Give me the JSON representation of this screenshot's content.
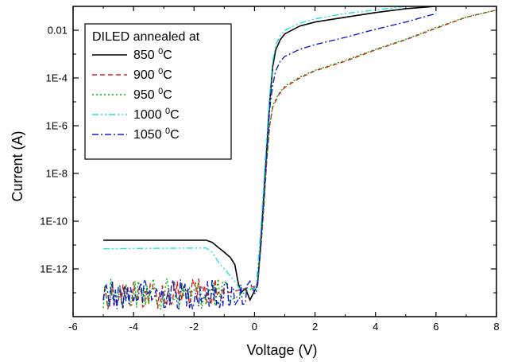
{
  "chart_data": {
    "type": "line",
    "xlabel": "Voltage (V)",
    "ylabel": "Current (A)",
    "xlim": [
      -6,
      8
    ],
    "ylim": [
      1e-14,
      0.1
    ],
    "yscale": "log",
    "x_ticks": [
      -6,
      -4,
      -2,
      0,
      2,
      4,
      6,
      8
    ],
    "x_tick_labels": [
      "-6",
      "-4",
      "-2",
      "0",
      "2",
      "4",
      "6",
      "8"
    ],
    "y_ticks": [
      1e-12,
      1e-10,
      1e-08,
      1e-06,
      0.0001,
      0.01
    ],
    "y_tick_labels": [
      "1E-12",
      "1E-10",
      "1E-8",
      "1E-6",
      "1E-4",
      "0.01"
    ],
    "legend": {
      "title": "DILED annealed at",
      "placement": "top-left",
      "unit_super": "0",
      "unit_tail": "C"
    },
    "series": [
      {
        "name": "850",
        "color": "#000000",
        "dash": "solid",
        "points": [
          [
            -5,
            1.6e-11
          ],
          [
            -1.6,
            1.6e-11
          ],
          [
            -1.4,
            1.3e-11
          ],
          [
            -1.2,
            8e-12
          ],
          [
            -1.0,
            5e-12
          ],
          [
            -0.8,
            3e-12
          ],
          [
            -0.65,
            1.5e-12
          ],
          [
            -0.55,
            3e-13
          ],
          [
            -0.45,
            1e-13
          ],
          [
            -0.3,
            1.5e-13
          ],
          [
            -0.15,
            5e-14
          ],
          [
            0,
            1.2e-13
          ],
          [
            0.1,
            2e-13
          ],
          [
            0.2,
            1e-11
          ],
          [
            0.3,
            1e-09
          ],
          [
            0.4,
            1e-07
          ],
          [
            0.5,
            1e-05
          ],
          [
            0.6,
            0.0003
          ],
          [
            0.7,
            0.0015
          ],
          [
            0.85,
            0.004
          ],
          [
            1.0,
            0.007
          ],
          [
            1.5,
            0.015
          ],
          [
            2,
            0.022
          ],
          [
            3,
            0.035
          ],
          [
            4,
            0.055
          ],
          [
            5,
            0.08
          ],
          [
            6,
            0.1
          ]
        ]
      },
      {
        "name": "900",
        "color": "#d62020",
        "dash": "dashed",
        "points": [
          [
            0.1,
            2e-13
          ],
          [
            0.2,
            5e-12
          ],
          [
            0.3,
            3e-10
          ],
          [
            0.4,
            3e-08
          ],
          [
            0.5,
            1e-06
          ],
          [
            0.6,
            6e-06
          ],
          [
            0.8,
            2e-05
          ],
          [
            1.0,
            4e-05
          ],
          [
            1.5,
            0.0001
          ],
          [
            2,
            0.0002
          ],
          [
            3,
            0.0005
          ],
          [
            4,
            0.0015
          ],
          [
            5,
            0.004
          ],
          [
            6,
            0.012
          ],
          [
            7,
            0.035
          ],
          [
            8,
            0.07
          ]
        ]
      },
      {
        "name": "950",
        "color": "#00b000",
        "dash": "dotted",
        "points": [
          [
            0.1,
            2e-13
          ],
          [
            0.2,
            5e-12
          ],
          [
            0.3,
            3e-10
          ],
          [
            0.4,
            3e-08
          ],
          [
            0.5,
            1e-06
          ],
          [
            0.6,
            7e-06
          ],
          [
            0.8,
            2.2e-05
          ],
          [
            1.0,
            4.5e-05
          ],
          [
            1.5,
            0.00011
          ],
          [
            2,
            0.00021
          ],
          [
            3,
            0.00055
          ],
          [
            4,
            0.0016
          ],
          [
            5,
            0.0042
          ],
          [
            6,
            0.013
          ],
          [
            7,
            0.036
          ],
          [
            8,
            0.07
          ]
        ]
      },
      {
        "name": "1000",
        "color": "#22e0e0",
        "dash": "dashdotdot",
        "points": [
          [
            -5,
            7e-12
          ],
          [
            -1.6,
            7.5e-12
          ],
          [
            -1.4,
            5e-12
          ],
          [
            -1.2,
            2e-12
          ],
          [
            -1.0,
            1e-12
          ],
          [
            -0.8,
            5e-13
          ],
          [
            -0.6,
            2.5e-13
          ],
          [
            -0.5,
            1.5e-13
          ],
          [
            0.05,
            1.5e-13
          ],
          [
            0.1,
            1e-12
          ],
          [
            0.2,
            3e-11
          ],
          [
            0.3,
            3e-09
          ],
          [
            0.4,
            3e-07
          ],
          [
            0.5,
            2e-05
          ],
          [
            0.6,
            0.0005
          ],
          [
            0.7,
            0.0025
          ],
          [
            0.85,
            0.006
          ],
          [
            1.0,
            0.01
          ],
          [
            1.5,
            0.02
          ],
          [
            2,
            0.03
          ],
          [
            3,
            0.05
          ],
          [
            4,
            0.07
          ],
          [
            5,
            0.1
          ]
        ]
      },
      {
        "name": "1050",
        "color": "#1020c0",
        "dash": "dashdot",
        "points": [
          [
            0.1,
            2e-13
          ],
          [
            0.2,
            8e-12
          ],
          [
            0.3,
            6e-10
          ],
          [
            0.4,
            6e-08
          ],
          [
            0.5,
            5e-06
          ],
          [
            0.6,
            5e-05
          ],
          [
            0.7,
            0.0002
          ],
          [
            0.85,
            0.0005
          ],
          [
            1.0,
            0.0008
          ],
          [
            1.5,
            0.0016
          ],
          [
            2,
            0.0025
          ],
          [
            3,
            0.005
          ],
          [
            4,
            0.011
          ],
          [
            5,
            0.022
          ],
          [
            6,
            0.05
          ]
        ]
      }
    ]
  }
}
